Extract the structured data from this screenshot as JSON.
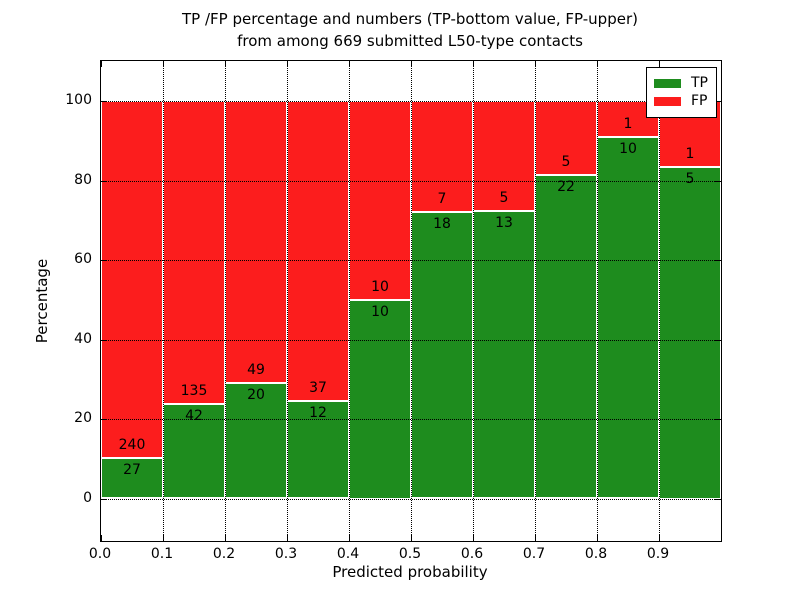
{
  "title": {
    "line1": "TP /FP percentage and numbers (TP-bottom value, FP-upper)",
    "line2": "from among 669 submitted L50-type contacts"
  },
  "axes": {
    "xlabel": "Predicted probability",
    "ylabel": "Percentage",
    "x_tick_labels": [
      "0.0",
      "0.1",
      "0.2",
      "0.3",
      "0.4",
      "0.5",
      "0.6",
      "0.7",
      "0.8",
      "0.9"
    ],
    "y_tick_labels": [
      "0",
      "20",
      "40",
      "60",
      "80",
      "100"
    ]
  },
  "legend": {
    "entries": [
      {
        "label": "TP",
        "color": "#1e8c1e"
      },
      {
        "label": "FP",
        "color": "#fc1d1d"
      }
    ],
    "position": "upper right"
  },
  "colors": {
    "tp_green": "#1e8c1e",
    "fp_red": "#fc1d1d",
    "bar_edge": "#ffffff",
    "grid": "#000000",
    "background": "#ffffff"
  },
  "chart_data": {
    "type": "bar",
    "stacked": true,
    "normalized_to_100_percent": true,
    "title": "TP /FP percentage and numbers (TP-bottom value, FP-upper) from among 669 submitted L50-type contacts",
    "xlabel": "Predicted probability",
    "ylabel": "Percentage",
    "xlim": [
      0.0,
      1.0
    ],
    "y_ticks": [
      0,
      20,
      40,
      60,
      80,
      100
    ],
    "x_ticks": [
      0.0,
      0.1,
      0.2,
      0.3,
      0.4,
      0.5,
      0.6,
      0.7,
      0.8,
      0.9
    ],
    "grid": "dotted, drawn above bars",
    "bin_edges": [
      0.0,
      0.1,
      0.2,
      0.3,
      0.4,
      0.5,
      0.6,
      0.7,
      0.8,
      0.9,
      1.0
    ],
    "series": [
      {
        "name": "TP",
        "color": "#1e8c1e",
        "counts": [
          27,
          42,
          20,
          12,
          10,
          18,
          13,
          22,
          10,
          5
        ]
      },
      {
        "name": "FP",
        "color": "#fc1d1d",
        "counts": [
          240,
          135,
          49,
          37,
          10,
          7,
          5,
          5,
          1,
          1
        ]
      }
    ],
    "tp_percent_per_bin": [
      10.1,
      23.7,
      29.0,
      24.5,
      50.0,
      72.0,
      72.2,
      81.5,
      90.9,
      83.3
    ],
    "total_contacts": 669
  }
}
